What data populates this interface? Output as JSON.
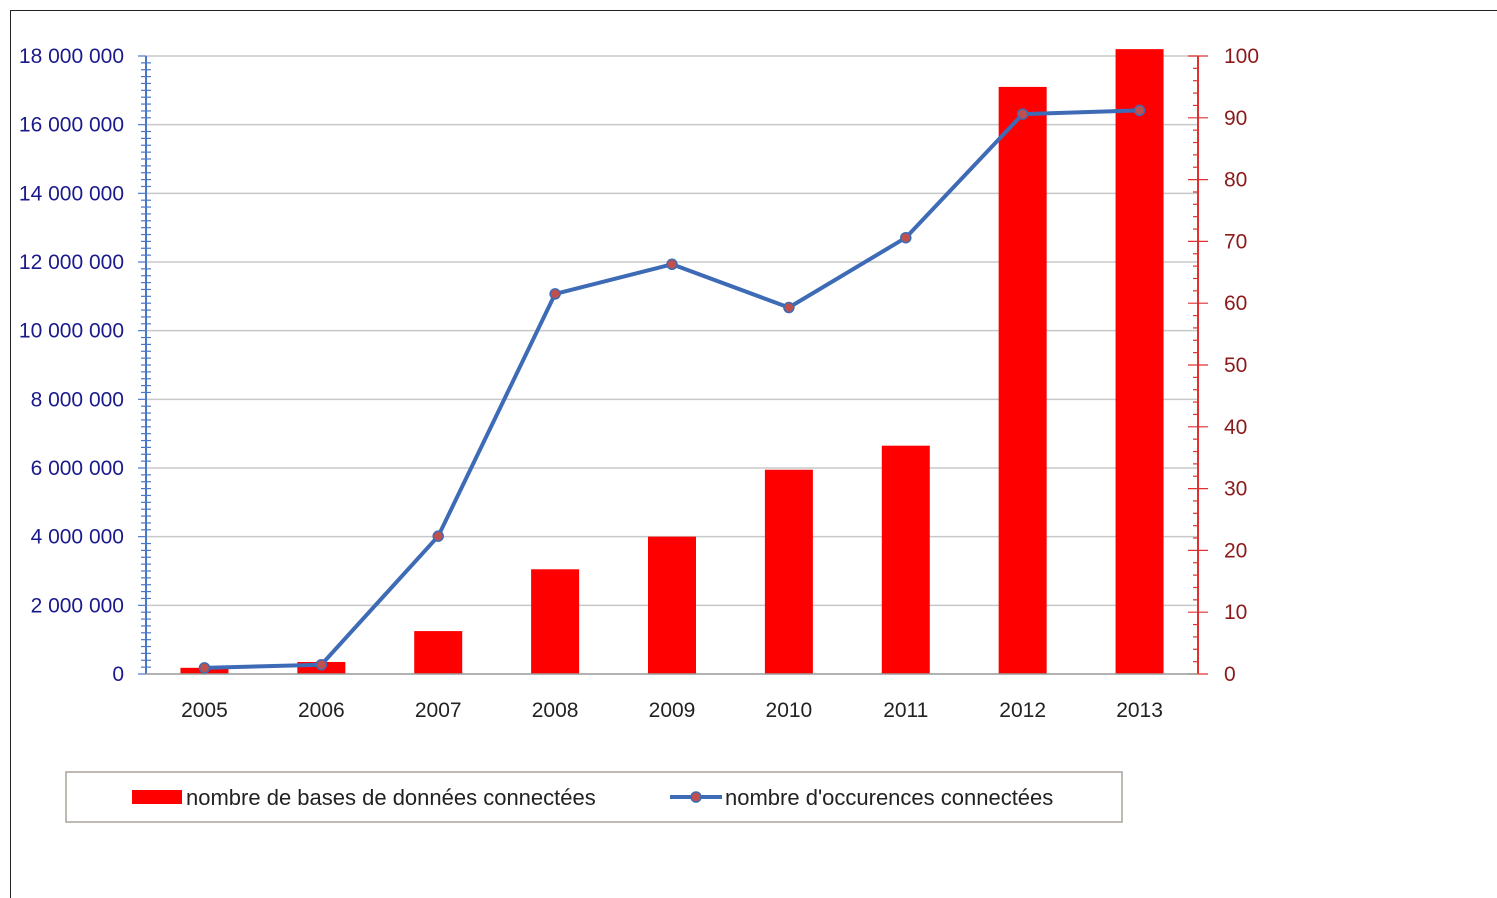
{
  "chart_data": {
    "type": "bar",
    "categories": [
      "2005",
      "2006",
      "2007",
      "2008",
      "2009",
      "2010",
      "2011",
      "2012",
      "2013"
    ],
    "series": [
      {
        "name": "nombre de bases de données connectées",
        "type": "bar",
        "axis": "left",
        "color": "#ff0000",
        "values": [
          180000,
          350000,
          1250000,
          3050000,
          4000000,
          5950000,
          6650000,
          17100000,
          18200000
        ]
      },
      {
        "name": "nombre d'occurences connectées",
        "type": "line",
        "axis": "right",
        "color": "#3e6bb5",
        "marker_color": "#c0504d",
        "values": [
          1,
          1.5,
          22.3,
          61.5,
          66.3,
          59.3,
          70.6,
          90.6,
          91.2
        ]
      }
    ],
    "y_left": {
      "ylim": [
        0,
        18000000
      ],
      "ticks": [
        0,
        2000000,
        4000000,
        6000000,
        8000000,
        10000000,
        12000000,
        14000000,
        16000000,
        18000000
      ],
      "tick_labels": [
        "0",
        "2 000 000",
        "4 000 000",
        "6 000 000",
        "8 000 000",
        "10 000 000",
        "12 000 000",
        "14 000 000",
        "16 000 000",
        "18 000 000"
      ],
      "color": "#1a1a8c"
    },
    "y_right": {
      "ylim": [
        0,
        100
      ],
      "ticks": [
        0,
        10,
        20,
        30,
        40,
        50,
        60,
        70,
        80,
        90,
        100
      ],
      "tick_labels": [
        "0",
        "10",
        "20",
        "30",
        "40",
        "50",
        "60",
        "70",
        "80",
        "90",
        "100"
      ],
      "color": "#8b1a1a"
    },
    "x_tick_labels": [
      "2005",
      "2006",
      "2007",
      "2008",
      "2009",
      "2010",
      "2011",
      "2012",
      "2013"
    ],
    "grid": true,
    "legend_position": "bottom"
  }
}
